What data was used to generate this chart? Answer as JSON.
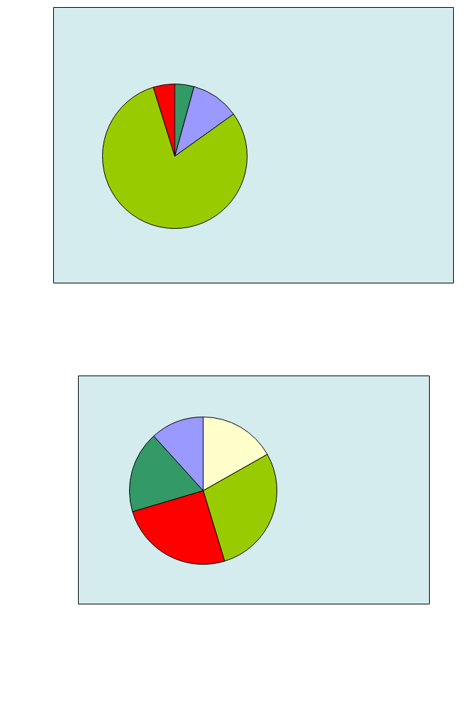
{
  "chart_data": [
    {
      "type": "pie",
      "categories": [
        null,
        null,
        null,
        null
      ],
      "values": [
        4.3,
        10.8,
        80.1,
        4.8
      ],
      "colors": [
        "#339966",
        "#9999ff",
        "#99cc00",
        "#ff0000"
      ]
    },
    {
      "type": "pie",
      "categories": [
        null,
        null,
        null,
        null,
        null
      ],
      "values": [
        16.8,
        28.5,
        25.1,
        17.9,
        11.7
      ],
      "colors": [
        "#ffffcc",
        "#99cc00",
        "#ff0000",
        "#339966",
        "#9999ff"
      ]
    }
  ]
}
